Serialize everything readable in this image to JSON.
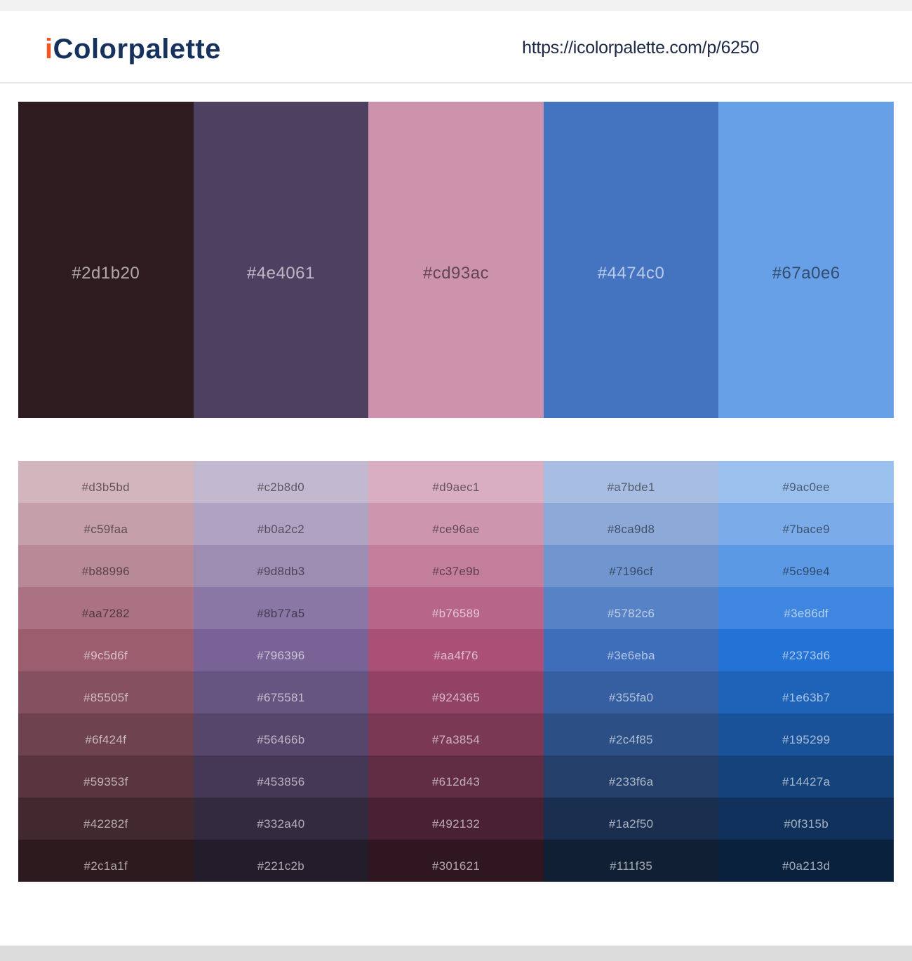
{
  "page": {
    "background": "#ffffff",
    "top_strip_color": "#f2f2f2",
    "bottom_strip_color": "#dcdcdc",
    "header_border_color": "#e6e6e6"
  },
  "header": {
    "logo": {
      "prefix": "i",
      "rest": "Colorpalette",
      "prefix_color": "#f05523",
      "rest_color": "#16325c"
    },
    "url": "https://icolorpalette.com/p/6250",
    "url_color": "#1d2945"
  },
  "palette": {
    "colors": [
      "#2d1b20",
      "#4e4061",
      "#cd93ac",
      "#4474c0",
      "#67a0e6"
    ]
  },
  "shades": {
    "rows": [
      [
        "#d3b5bd",
        "#c2b8d0",
        "#d9aec1",
        "#a7bde1",
        "#9ac0ee"
      ],
      [
        "#c59faa",
        "#b0a2c2",
        "#ce96ae",
        "#8ca9d8",
        "#7bace9"
      ],
      [
        "#b88996",
        "#9d8db3",
        "#c37e9b",
        "#7196cf",
        "#5c99e4"
      ],
      [
        "#aa7282",
        "#8b77a5",
        "#b76589",
        "#5782c6",
        "#3e86df"
      ],
      [
        "#9c5d6f",
        "#796396",
        "#aa4f76",
        "#3e6eba",
        "#2373d6"
      ],
      [
        "#85505f",
        "#675581",
        "#924365",
        "#355fa0",
        "#1e63b7"
      ],
      [
        "#6f424f",
        "#56466b",
        "#7a3854",
        "#2c4f85",
        "#195299"
      ],
      [
        "#59353f",
        "#453856",
        "#612d43",
        "#233f6a",
        "#14427a"
      ],
      [
        "#42282f",
        "#332a40",
        "#492132",
        "#1a2f50",
        "#0f315b"
      ],
      [
        "#2c1a1f",
        "#221c2b",
        "#301621",
        "#111f35",
        "#0a213d"
      ]
    ]
  },
  "text_colors": {
    "on_light_swatch": "rgba(0,0,0,0.52)",
    "on_dark_swatch": "rgba(255,255,255,0.62)"
  }
}
